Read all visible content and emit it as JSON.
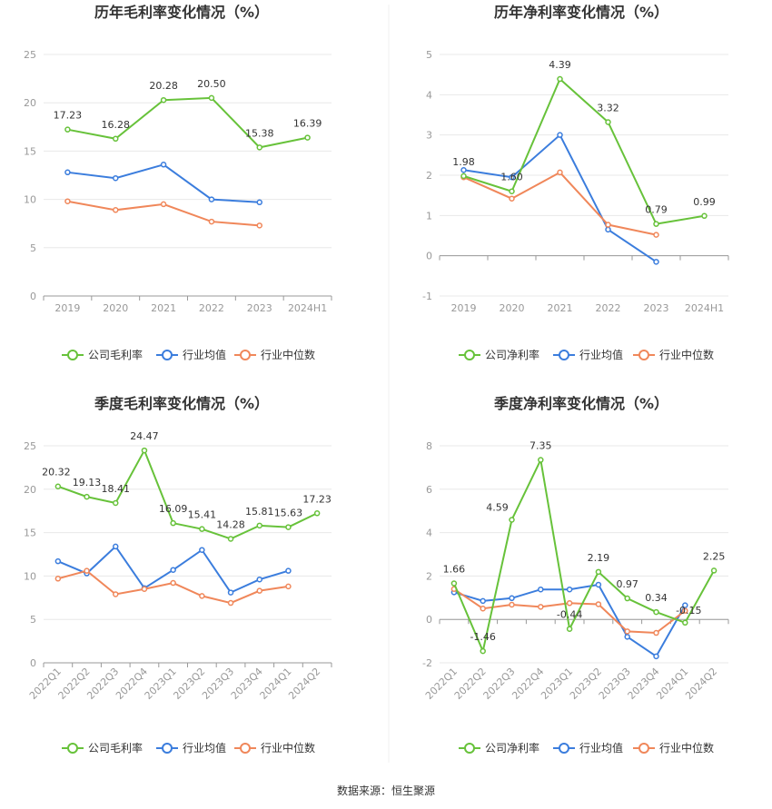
{
  "source_label": "数据来源：恒生聚源",
  "colors": {
    "company": "#67c23a",
    "avg": "#3b7ddd",
    "median": "#f0875a"
  },
  "legend_icon": "circle-line-icon",
  "chart_data": [
    {
      "type": "line",
      "title": "历年毛利率变化情况（%）",
      "categories": [
        "2019",
        "2020",
        "2021",
        "2022",
        "2023",
        "2024H1"
      ],
      "yticks": [
        "0",
        "5",
        "10",
        "15",
        "20",
        "25"
      ],
      "ylim": [
        0,
        25
      ],
      "grid": true,
      "legend_position": "bottom",
      "series": [
        {
          "name": "公司毛利率",
          "values": [
            17.23,
            16.28,
            20.28,
            20.5,
            15.38,
            16.39
          ],
          "labels": [
            "17.23",
            "16.28",
            "20.28",
            "20.50",
            "15.38",
            "16.39"
          ]
        },
        {
          "name": "行业均值",
          "values": [
            12.8,
            12.2,
            13.6,
            10.0,
            9.7,
            null
          ]
        },
        {
          "name": "行业中位数",
          "values": [
            9.8,
            8.9,
            9.5,
            7.7,
            7.3,
            null
          ]
        }
      ]
    },
    {
      "type": "line",
      "title": "历年净利率变化情况（%）",
      "categories": [
        "2019",
        "2020",
        "2021",
        "2022",
        "2023",
        "2024H1"
      ],
      "yticks": [
        "-1",
        "0",
        "1",
        "2",
        "3",
        "4",
        "5"
      ],
      "ylim": [
        -1,
        5
      ],
      "grid": true,
      "legend_position": "bottom",
      "series": [
        {
          "name": "公司净利率",
          "values": [
            1.98,
            1.6,
            4.39,
            3.32,
            0.79,
            0.99
          ],
          "labels": [
            "1.98",
            "1.60",
            "4.39",
            "3.32",
            "0.79",
            "0.99"
          ]
        },
        {
          "name": "行业均值",
          "values": [
            2.13,
            1.95,
            3.0,
            0.65,
            -0.15,
            null
          ]
        },
        {
          "name": "行业中位数",
          "values": [
            1.95,
            1.42,
            2.07,
            0.77,
            0.52,
            null
          ]
        }
      ]
    },
    {
      "type": "line",
      "title": "季度毛利率变化情况（%）",
      "categories": [
        "2022Q1",
        "2022Q2",
        "2022Q3",
        "2022Q4",
        "2023Q1",
        "2023Q2",
        "2023Q3",
        "2023Q4",
        "2024Q1",
        "2024Q2"
      ],
      "yticks": [
        "0",
        "5",
        "10",
        "15",
        "20",
        "25"
      ],
      "ylim": [
        0,
        25
      ],
      "grid": true,
      "legend_position": "bottom",
      "series": [
        {
          "name": "公司毛利率",
          "values": [
            20.32,
            19.13,
            18.41,
            24.47,
            16.09,
            15.41,
            14.28,
            15.81,
            15.63,
            17.23
          ],
          "labels": [
            "20.32",
            "19.13",
            "18.41",
            "24.47",
            "16.09",
            "15.41",
            "14.28",
            "15.81",
            "15.63",
            "17.23"
          ]
        },
        {
          "name": "行业均值",
          "values": [
            11.7,
            10.3,
            13.4,
            8.6,
            10.7,
            13.0,
            8.1,
            9.6,
            10.6,
            null
          ]
        },
        {
          "name": "行业中位数",
          "values": [
            9.7,
            10.6,
            7.9,
            8.5,
            9.2,
            7.7,
            6.9,
            8.3,
            8.8,
            null
          ]
        }
      ]
    },
    {
      "type": "line",
      "title": "季度净利率变化情况（%）",
      "categories": [
        "2022Q1",
        "2022Q2",
        "2022Q3",
        "2022Q4",
        "2023Q1",
        "2023Q2",
        "2023Q3",
        "2023Q4",
        "2024Q1",
        "2024Q2"
      ],
      "yticks": [
        "-2",
        "0",
        "2",
        "4",
        "6",
        "8"
      ],
      "ylim": [
        -2,
        8
      ],
      "grid": true,
      "legend_position": "bottom",
      "series": [
        {
          "name": "公司净利率",
          "values": [
            1.66,
            -1.46,
            4.59,
            7.35,
            -0.44,
            2.19,
            0.97,
            0.34,
            -0.15,
            2.25
          ],
          "labels": [
            "1.66",
            "-1.46",
            "4.59",
            "7.35",
            "-0.44",
            "2.19",
            "0.97",
            "0.34",
            "-0.15",
            "2.25"
          ]
        },
        {
          "name": "行业均值",
          "values": [
            1.25,
            0.85,
            0.98,
            1.38,
            1.38,
            1.6,
            -0.8,
            -1.7,
            0.65,
            null
          ]
        },
        {
          "name": "行业中位数",
          "values": [
            1.4,
            0.5,
            0.68,
            0.58,
            0.75,
            0.7,
            -0.55,
            -0.62,
            0.4,
            null
          ]
        }
      ]
    }
  ]
}
